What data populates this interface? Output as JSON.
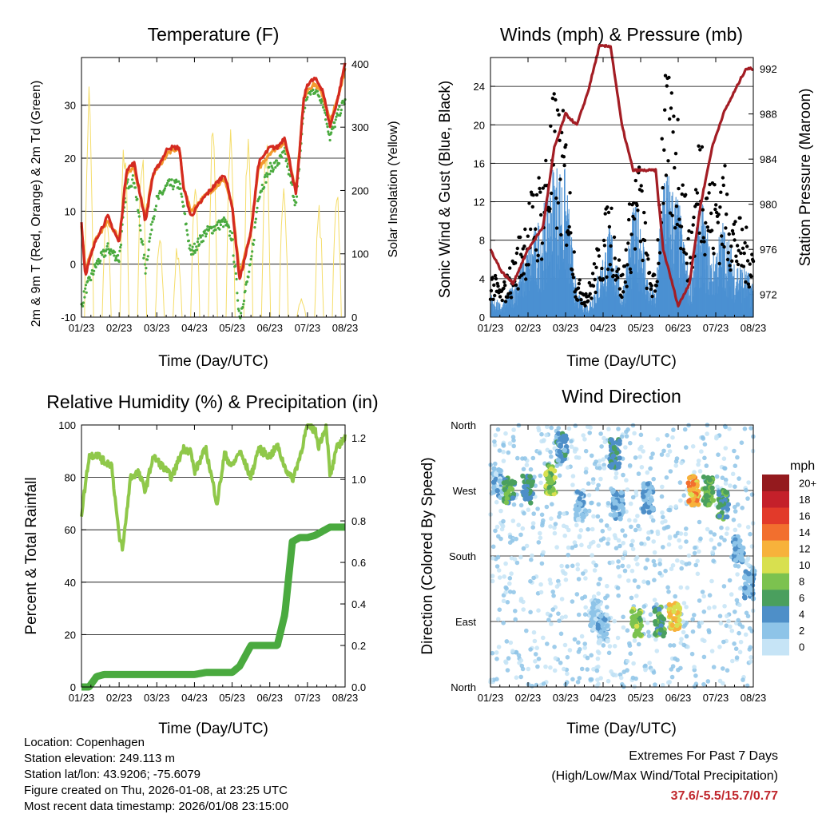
{
  "xticks": [
    "01/23",
    "02/23",
    "03/23",
    "04/23",
    "05/23",
    "06/23",
    "07/23",
    "08/23"
  ],
  "temperature": {
    "title": "Temperature (F)",
    "xlabel": "Time (Day/UTC)",
    "ylabel_left": "2m & 9m T (Red, Orange) & 2m Td (Green)",
    "ylabel_right": "Solar Insolation (Yellow)",
    "left_ticks": [
      "-10",
      "0",
      "10",
      "20",
      "30"
    ],
    "right_ticks": [
      "0",
      "100",
      "200",
      "300",
      "400"
    ]
  },
  "winds": {
    "title": "Winds (mph) & Pressure (mb)",
    "xlabel": "Time (Day/UTC)",
    "ylabel_left": "Sonic Wind & Gust (Blue, Black)",
    "ylabel_right": "Station Pressure (Maroon)",
    "left_ticks": [
      "0",
      "4",
      "8",
      "12",
      "16",
      "20",
      "24"
    ],
    "right_ticks": [
      "972",
      "976",
      "980",
      "984",
      "988",
      "992"
    ]
  },
  "humidity": {
    "title": "Relative Humidity (%) & Precipitation (in)",
    "xlabel": "Time (Day/UTC)",
    "ylabel_left": "Percent & Total Rainfall",
    "left_ticks": [
      "0",
      "20",
      "40",
      "60",
      "80",
      "100"
    ],
    "right_ticks": [
      "0.0",
      "0.2",
      "0.4",
      "0.6",
      "0.8",
      "1.0",
      "1.2"
    ]
  },
  "direction": {
    "title": "Wind Direction",
    "xlabel": "Time (Day/UTC)",
    "ylabel_left": "Direction (Colored By Speed)",
    "left_ticks": [
      "North",
      "East",
      "South",
      "West",
      "North"
    ],
    "legend_title": "mph",
    "legend_labels": [
      "0",
      "2",
      "4",
      "6",
      "8",
      "10",
      "12",
      "14",
      "16",
      "18",
      "20+"
    ]
  },
  "colors": {
    "temp_2m": "#d42a20",
    "temp_9m": "#f39a30",
    "dewpoint": "#4aaa3f",
    "solar": "#f5dd6a",
    "wind": "#4a90d2",
    "gust": "#000000",
    "pressure": "#a31d24",
    "rh": "#8fc84a",
    "precip": "#4aaa3f",
    "speed_scale": [
      "#c6e4f6",
      "#8ec4e8",
      "#4e8fc8",
      "#4a9f5e",
      "#7cc24f",
      "#d8e04f",
      "#f7b23b",
      "#f26f2e",
      "#e23a2a",
      "#c4202a",
      "#941a1e"
    ]
  },
  "chart_data": [
    {
      "type": "line",
      "title": "Temperature (F)",
      "xlabel": "Time (Day/UTC)",
      "ylabel": "2m & 9m T (Red, Orange) & 2m Td (Green)",
      "ylabel2": "Solar Insolation (Yellow)",
      "x": [
        0,
        0.1,
        0.4,
        0.7,
        1,
        1.2,
        1.4,
        1.7,
        1.9,
        2,
        2.3,
        2.6,
        2.7,
        2.9,
        3.3,
        3.8,
        4,
        4.2,
        4.5,
        4.7,
        5,
        5.2,
        5.4,
        5.7,
        5.9,
        6,
        6.2,
        6.4,
        6.6,
        6.8,
        7
      ],
      "series": [
        {
          "name": "2m T",
          "values": [
            8,
            -2,
            5,
            9,
            4,
            18,
            19,
            8,
            17,
            18,
            22,
            22,
            15,
            9,
            13,
            17,
            11,
            -3,
            6,
            19,
            22,
            22,
            24,
            13,
            31,
            34,
            35,
            33,
            26,
            31,
            38
          ]
        },
        {
          "name": "9m T",
          "values": [
            7,
            -1,
            5,
            8,
            5,
            17,
            18,
            9,
            17,
            18,
            21,
            22,
            15,
            10,
            13,
            16,
            11,
            -2,
            6,
            18,
            21,
            22,
            23,
            14,
            31,
            33,
            34,
            32,
            27,
            31,
            37
          ]
        },
        {
          "name": "2m Td",
          "values": [
            -8,
            -5,
            0,
            3,
            1,
            15,
            16,
            -1,
            9,
            12,
            15,
            15,
            11,
            2,
            6,
            8,
            5,
            -10,
            0,
            13,
            18,
            19,
            21,
            11,
            29,
            32,
            33,
            31,
            24,
            28,
            31
          ]
        }
      ],
      "solar_peaks": [
        390,
        180,
        300,
        280,
        130,
        120,
        240,
        320,
        330,
        330,
        300,
        250,
        30,
        180,
        230
      ],
      "ylim": [
        -10,
        39
      ],
      "ylim2": [
        0,
        410
      ]
    },
    {
      "type": "line",
      "title": "Winds (mph) & Pressure (mb)",
      "xlabel": "Time (Day/UTC)",
      "ylabel": "Sonic Wind & Gust (Blue, Black)",
      "ylabel2": "Station Pressure (Maroon)",
      "x": [
        0,
        0.3,
        0.6,
        1,
        1.4,
        1.7,
        2,
        2.3,
        2.6,
        2.9,
        3.2,
        3.5,
        3.8,
        4,
        4.2,
        4.4,
        4.6,
        5,
        5.3,
        5.6,
        5.9,
        6.2,
        6.5,
        6.8,
        7
      ],
      "series": [
        {
          "name": "Sonic Wind",
          "values": [
            2,
            1,
            3,
            6,
            9,
            13,
            12,
            2,
            1,
            4,
            8,
            2,
            9,
            9,
            3,
            2,
            13,
            10,
            3,
            10,
            5,
            8,
            5,
            4,
            3
          ]
        },
        {
          "name": "Gust",
          "values": [
            5,
            3,
            6,
            12,
            16,
            23,
            20,
            4,
            3,
            8,
            13,
            4,
            15,
            16,
            6,
            4,
            25,
            22,
            8,
            21,
            14,
            16,
            11,
            9,
            8
          ]
        },
        {
          "name": "Station Pressure",
          "values": [
            976,
            974,
            973,
            976,
            978,
            985,
            988,
            987,
            990,
            994,
            994,
            987,
            983,
            983,
            983,
            983,
            976,
            971,
            973,
            980,
            985,
            988,
            990,
            992,
            992
          ]
        }
      ],
      "ylim": [
        0,
        27
      ],
      "ylim2": [
        970,
        993
      ]
    },
    {
      "type": "line",
      "title": "Relative Humidity (%) & Precipitation (in)",
      "xlabel": "Time (Day/UTC)",
      "ylabel": "Percent & Total Rainfall",
      "x": [
        0,
        0.2,
        0.4,
        0.6,
        0.8,
        1,
        1.1,
        1.3,
        1.5,
        1.7,
        1.9,
        2.1,
        2.4,
        2.7,
        2.9,
        3,
        3.3,
        3.6,
        3.8,
        4,
        4.2,
        4.5,
        4.7,
        5,
        5.2,
        5.4,
        5.6,
        5.8,
        6,
        6.2,
        6.3,
        6.5,
        6.6,
        6.8,
        7
      ],
      "series": [
        {
          "name": "Relative Humidity (%)",
          "values": [
            66,
            88,
            89,
            86,
            85,
            57,
            53,
            80,
            82,
            75,
            88,
            85,
            80,
            91,
            90,
            82,
            91,
            70,
            89,
            84,
            90,
            80,
            91,
            88,
            92,
            84,
            79,
            88,
            100,
            98,
            92,
            100,
            80,
            92,
            95
          ]
        },
        {
          "name": "Total Precipitation (in)",
          "values": [
            0,
            0,
            0.05,
            0.06,
            0.06,
            0.06,
            0.06,
            0.06,
            0.06,
            0.06,
            0.06,
            0.06,
            0.06,
            0.06,
            0.06,
            0.06,
            0.07,
            0.07,
            0.07,
            0.07,
            0.1,
            0.2,
            0.2,
            0.2,
            0.2,
            0.35,
            0.7,
            0.72,
            0.72,
            0.73,
            0.74,
            0.76,
            0.77,
            0.77,
            0.77
          ]
        }
      ],
      "ylim": [
        0,
        100
      ],
      "ylim2": [
        0,
        1.262
      ]
    },
    {
      "type": "scatter",
      "title": "Wind Direction",
      "xlabel": "Time (Day/UTC)",
      "ylabel": "Direction (Colored By Speed)",
      "yticks": [
        "North",
        "East",
        "South",
        "West",
        "North"
      ],
      "ylim": [
        0,
        360
      ],
      "color_by": "speed (mph)",
      "clusters": [
        {
          "x": 0.2,
          "dir": 280,
          "speed": 3
        },
        {
          "x": 0.5,
          "dir": 270,
          "speed": 7
        },
        {
          "x": 1.0,
          "dir": 270,
          "speed": 6
        },
        {
          "x": 1.6,
          "dir": 285,
          "speed": 9
        },
        {
          "x": 1.9,
          "dir": 330,
          "speed": 5
        },
        {
          "x": 2.4,
          "dir": 250,
          "speed": 3
        },
        {
          "x": 2.8,
          "dir": 100,
          "speed": 2
        },
        {
          "x": 3.0,
          "dir": 80,
          "speed": 3
        },
        {
          "x": 3.3,
          "dir": 320,
          "speed": 6
        },
        {
          "x": 3.4,
          "dir": 250,
          "speed": 4
        },
        {
          "x": 3.9,
          "dir": 90,
          "speed": 9
        },
        {
          "x": 4.2,
          "dir": 260,
          "speed": 4
        },
        {
          "x": 4.5,
          "dir": 90,
          "speed": 7
        },
        {
          "x": 4.9,
          "dir": 95,
          "speed": 12
        },
        {
          "x": 5.4,
          "dir": 270,
          "speed": 13
        },
        {
          "x": 5.8,
          "dir": 270,
          "speed": 8
        },
        {
          "x": 6.2,
          "dir": 250,
          "speed": 7
        },
        {
          "x": 6.6,
          "dir": 190,
          "speed": 4
        },
        {
          "x": 6.9,
          "dir": 140,
          "speed": 4
        }
      ]
    }
  ],
  "info": {
    "location": "Location: Copenhagen",
    "elevation": "Station elevation: 249.113 m",
    "latlon": "Station lat/lon: 43.9206; -75.6079",
    "created": "Figure created on Thu, 2026-01-08, at 23:25 UTC",
    "recent": "Most recent data timestamp: 2026/01/08 23:15:00"
  },
  "extremes": {
    "title": "Extremes For Past 7 Days",
    "subtitle": "(High/Low/Max Wind/Total Precipitation)",
    "values": "37.6/-5.5/15.7/0.77"
  }
}
